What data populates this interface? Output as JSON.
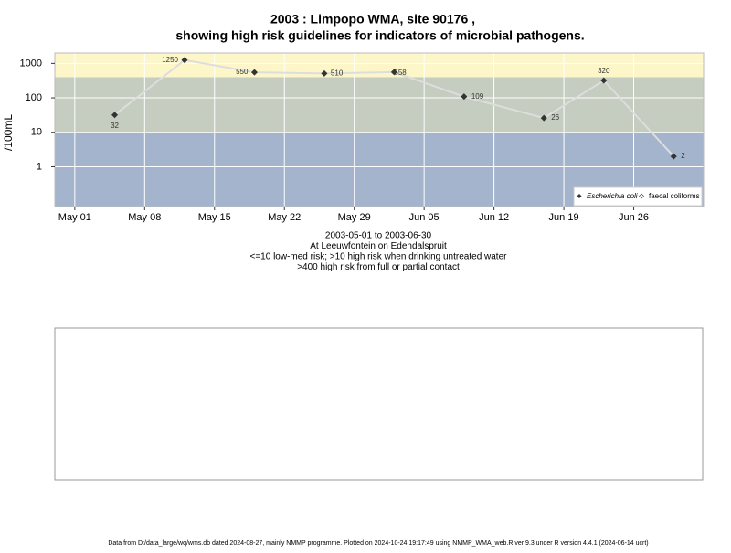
{
  "chart_data": {
    "type": "line",
    "title": "2003 : Limpopo WMA, site 90176 ,",
    "title_line2": "showing high risk guidelines for indicators of microbial pathogens.",
    "y_label": "/100mL",
    "subtitle_lines": [
      "2003-05-01 to 2003-06-30",
      "At Leeuwfontein on Edendalspruit",
      "<=10 low-med risk; >10 high risk when drinking untreated water",
      ">400 high risk from full or partial contact"
    ],
    "footer": "Data from D:/data_large/wq/wms.db dated 2024-08-27, mainly NMMP programme. Plotted on 2024-10-24 19:17:49 using NMMP_WMA_web.R ver 9.3 under R version 4.4.1 (2024-06-14 ucrt)",
    "x": [
      "2003-05-05",
      "2003-05-12",
      "2003-05-19",
      "2003-05-26",
      "2003-06-02",
      "2003-06-09",
      "2003-06-17",
      "2003-06-23",
      "2003-06-30"
    ],
    "series": [
      {
        "name": "Escherichia coli",
        "color": "#333333",
        "values": [
          32,
          1250,
          550,
          510,
          558,
          109,
          26,
          320,
          2
        ]
      },
      {
        "name": "faecal coliforms",
        "color": "#ffffff",
        "values": [
          null,
          null,
          null,
          null,
          null,
          null,
          null,
          null,
          null
        ]
      }
    ],
    "xlim": [
      "2003-04-29",
      "2003-07-03"
    ],
    "xticks": [
      {
        "value": "2003-05-01",
        "label": "May 01"
      },
      {
        "value": "2003-05-08",
        "label": "May 08"
      },
      {
        "value": "2003-05-15",
        "label": "May 15"
      },
      {
        "value": "2003-05-22",
        "label": "May 22"
      },
      {
        "value": "2003-05-29",
        "label": "May 29"
      },
      {
        "value": "2003-06-05",
        "label": "Jun 05"
      },
      {
        "value": "2003-06-12",
        "label": "Jun 12"
      },
      {
        "value": "2003-06-19",
        "label": "Jun 19"
      },
      {
        "value": "2003-06-26",
        "label": "Jun 26"
      }
    ],
    "ylim": [
      0.07,
      2000
    ],
    "yticks": [
      1,
      10,
      100,
      1000
    ],
    "log_y": true,
    "grid": true,
    "guidelines": [
      10,
      400
    ],
    "band_colors": [
      "#a3b4cc",
      "#c4cdbf",
      "#fdf6c8"
    ],
    "line_color": "#dddddd",
    "legend_position": "bottom-right"
  }
}
